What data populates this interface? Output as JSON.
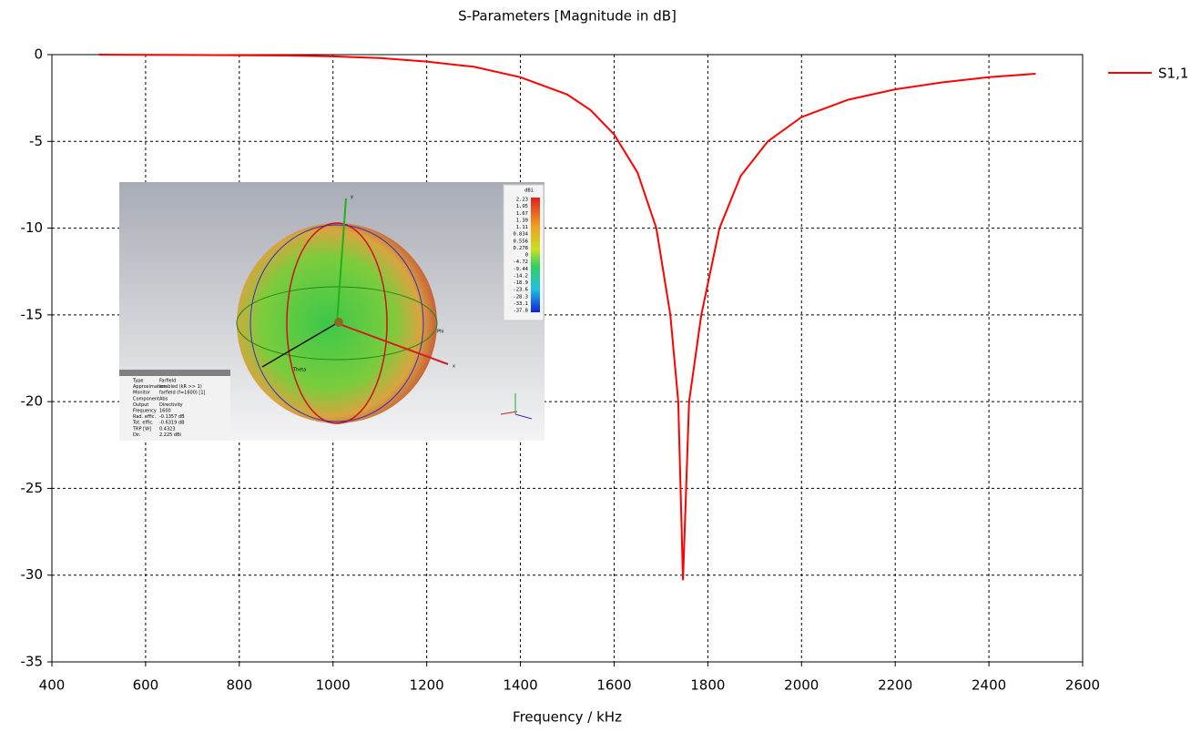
{
  "chart_data": {
    "type": "line",
    "title": "S-Parameters [Magnitude in dB]",
    "x_label": "Frequency / kHz",
    "series": [
      {
        "name": "S1,1",
        "color": "#ff0000",
        "x": [
          500,
          700,
          900,
          1000,
          1100,
          1200,
          1300,
          1400,
          1500,
          1550,
          1600,
          1650,
          1690,
          1720,
          1737,
          1747,
          1760,
          1786,
          1825,
          1870,
          1928,
          2000,
          2100,
          2200,
          2300,
          2400,
          2500
        ],
        "values": [
          0,
          -0.02,
          -0.05,
          -0.1,
          -0.2,
          -0.4,
          -0.7,
          -1.3,
          -2.3,
          -3.2,
          -4.6,
          -6.8,
          -10,
          -15,
          -20,
          -30.3,
          -20,
          -15,
          -10,
          -7,
          -5,
          -3.6,
          -2.6,
          -2.0,
          -1.6,
          -1.3,
          -1.1
        ]
      }
    ],
    "xlim": [
      400,
      2600
    ],
    "xticks": [
      400,
      600,
      800,
      1000,
      1200,
      1400,
      1600,
      1800,
      2000,
      2200,
      2400,
      2600
    ],
    "ylim": [
      -35,
      0
    ],
    "yticks": [
      0,
      -5,
      -10,
      -15,
      -20,
      -25,
      -30,
      -35
    ],
    "grid": true,
    "legend": "right"
  },
  "inset": {
    "colorbar_unit": "dBi",
    "colorbar_labels": [
      "2.23",
      "1.95",
      "1.67",
      "1.39",
      "1.11",
      "0.834",
      "0.556",
      "0.278",
      "0",
      "-4.72",
      "-9.44",
      "-14.2",
      "-18.9",
      "-23.6",
      "-28.3",
      "-33.1",
      "-37.8"
    ],
    "axes": [
      "x",
      "y",
      "Theta",
      "Phi"
    ],
    "info": [
      [
        "Type",
        "Farfield"
      ],
      [
        "Approximation",
        "enabled (kR >> 1)"
      ],
      [
        "Monitor",
        "farfield (f=1600) [1]"
      ],
      [
        "Component",
        "Abs"
      ],
      [
        "Output",
        "Directivity"
      ],
      [
        "Frequency",
        "1600"
      ],
      [
        "Rad. effic.",
        "-0.1357 dB"
      ],
      [
        "Tot. effic.",
        "-0.6319 dB"
      ],
      [
        "TRP [W]",
        "0.4323"
      ],
      [
        "Dir.",
        "2.225 dBi"
      ]
    ]
  }
}
